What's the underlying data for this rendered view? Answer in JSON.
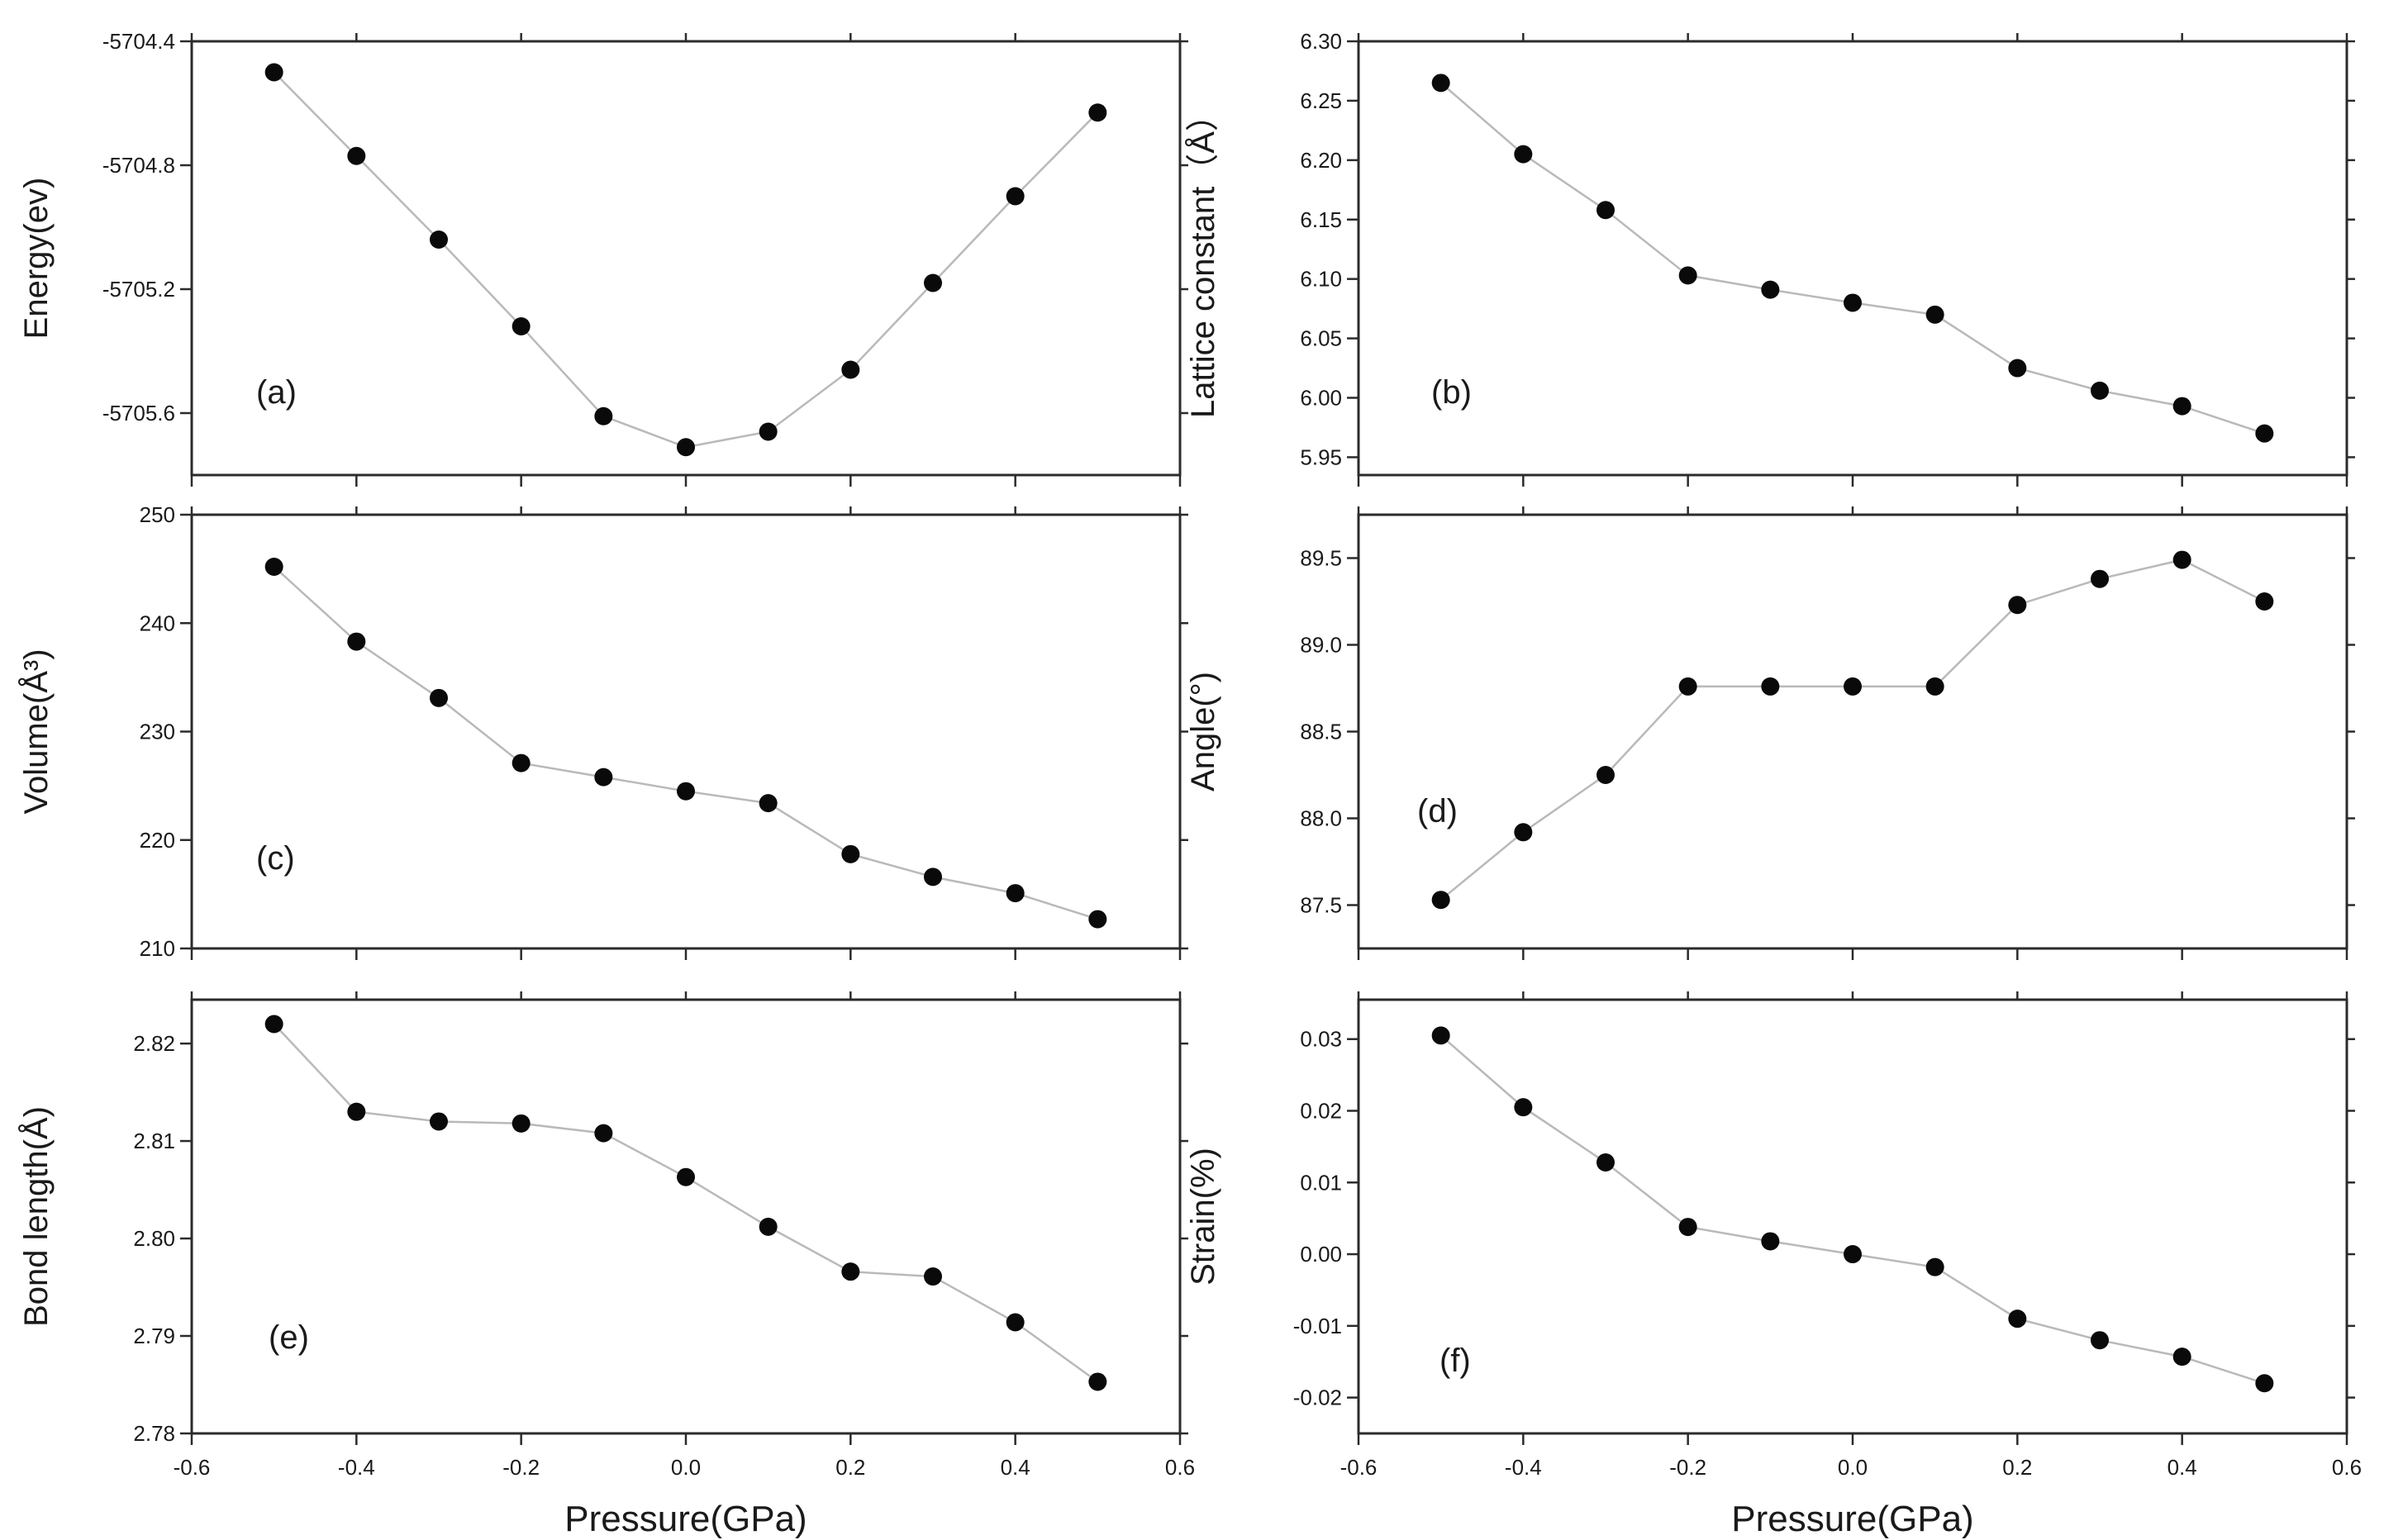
{
  "chart_data": [
    {
      "panel": "(a)",
      "type": "line",
      "ylabel": "Energy(ev)",
      "xlabel": "",
      "xlim": [
        -0.6,
        0.6
      ],
      "ylim": [
        -5705.8,
        -5704.4
      ],
      "xticks": [
        "-0.6",
        "-0.4",
        "-0.2",
        "0.0",
        "0.2",
        "0.4",
        "0.6"
      ],
      "yticks": [
        "-5704.4",
        "-5704.8",
        "-5705.2",
        "-5705.6"
      ],
      "show_xtick_labels": false,
      "x": [
        -0.5,
        -0.4,
        -0.3,
        -0.2,
        -0.1,
        0.0,
        0.1,
        0.2,
        0.3,
        0.4,
        0.5
      ],
      "values": [
        -5704.5,
        -5704.77,
        -5705.04,
        -5705.32,
        -5705.61,
        -5705.71,
        -5705.66,
        -5705.46,
        -5705.18,
        -5704.9,
        -5704.63
      ]
    },
    {
      "panel": "(b)",
      "type": "line",
      "ylabel": "Lattice constant（Å）",
      "xlabel": "",
      "xlim": [
        -0.6,
        0.6
      ],
      "ylim": [
        5.935,
        6.3
      ],
      "xticks": [
        "-0.6",
        "-0.4",
        "-0.2",
        "0.0",
        "0.2",
        "0.4",
        "0.6"
      ],
      "yticks": [
        "6.30",
        "6.25",
        "6.20",
        "6.15",
        "6.10",
        "6.05",
        "6.00",
        "5.95"
      ],
      "show_xtick_labels": false,
      "x": [
        -0.5,
        -0.4,
        -0.3,
        -0.2,
        -0.1,
        0.0,
        0.1,
        0.2,
        0.3,
        0.4,
        0.5
      ],
      "values": [
        6.265,
        6.205,
        6.158,
        6.103,
        6.091,
        6.08,
        6.07,
        6.025,
        6.006,
        5.993,
        5.97
      ]
    },
    {
      "panel": "(c)",
      "type": "line",
      "ylabel": "Volume(Å³)",
      "xlabel": "",
      "xlim": [
        -0.6,
        0.6
      ],
      "ylim": [
        210,
        250
      ],
      "xticks": [
        "-0.6",
        "-0.4",
        "-0.2",
        "0.0",
        "0.2",
        "0.4",
        "0.6"
      ],
      "yticks": [
        "250",
        "240",
        "230",
        "220",
        "210"
      ],
      "show_xtick_labels": false,
      "x": [
        -0.5,
        -0.4,
        -0.3,
        -0.2,
        -0.1,
        0.0,
        0.1,
        0.2,
        0.3,
        0.4,
        0.5
      ],
      "values": [
        245.2,
        238.3,
        233.1,
        227.1,
        225.8,
        224.5,
        223.4,
        218.7,
        216.6,
        215.1,
        212.7
      ]
    },
    {
      "panel": "(d)",
      "type": "line",
      "ylabel": "Angle(°)",
      "xlabel": "",
      "xlim": [
        -0.6,
        0.6
      ],
      "ylim": [
        87.25,
        89.75
      ],
      "xticks": [
        "-0.6",
        "-0.4",
        "-0.2",
        "0.0",
        "0.2",
        "0.4",
        "0.6"
      ],
      "yticks": [
        "89.5",
        "89.0",
        "88.5",
        "88.0",
        "87.5"
      ],
      "show_xtick_labels": false,
      "x": [
        -0.5,
        -0.4,
        -0.3,
        -0.2,
        -0.1,
        0.0,
        0.1,
        0.2,
        0.3,
        0.4,
        0.5
      ],
      "values": [
        87.53,
        87.92,
        88.25,
        88.76,
        88.76,
        88.76,
        88.76,
        89.23,
        89.38,
        89.49,
        89.25
      ]
    },
    {
      "panel": "(e)",
      "type": "line",
      "ylabel": "Bond length(Å)",
      "xlabel": "Pressure(GPa)",
      "xlim": [
        -0.6,
        0.6
      ],
      "ylim": [
        2.78,
        2.8245
      ],
      "xticks": [
        "-0.6",
        "-0.4",
        "-0.2",
        "0.0",
        "0.2",
        "0.4",
        "0.6"
      ],
      "yticks": [
        "2.82",
        "2.81",
        "2.80",
        "2.79",
        "2.78"
      ],
      "show_xtick_labels": true,
      "x": [
        -0.5,
        -0.4,
        -0.3,
        -0.2,
        -0.1,
        0.0,
        0.1,
        0.2,
        0.3,
        0.4,
        0.5
      ],
      "values": [
        2.822,
        2.813,
        2.812,
        2.8118,
        2.8108,
        2.8063,
        2.8012,
        2.7966,
        2.7961,
        2.7914,
        2.7853
      ]
    },
    {
      "panel": "(f)",
      "type": "line",
      "ylabel": "Strain(%)",
      "xlabel": "Pressure(GPa)",
      "xlim": [
        -0.6,
        0.6
      ],
      "ylim": [
        -0.025,
        0.0355
      ],
      "xticks": [
        "-0.6",
        "-0.4",
        "-0.2",
        "0.0",
        "0.2",
        "0.4",
        "0.6"
      ],
      "yticks": [
        "0.03",
        "0.02",
        "0.01",
        "0.00",
        "-0.01",
        "-0.02"
      ],
      "show_xtick_labels": true,
      "x": [
        -0.5,
        -0.4,
        -0.3,
        -0.2,
        -0.1,
        0.0,
        0.1,
        0.2,
        0.3,
        0.4,
        0.5
      ],
      "values": [
        0.0305,
        0.0205,
        0.0128,
        0.0038,
        0.0018,
        0.0,
        -0.0018,
        -0.009,
        -0.012,
        -0.0143,
        -0.018
      ]
    }
  ],
  "colors": {
    "marker": "#0a0a0a",
    "line": "#b9b9b9",
    "frame": "#2b2b2b",
    "text": "#1a1a1a"
  }
}
